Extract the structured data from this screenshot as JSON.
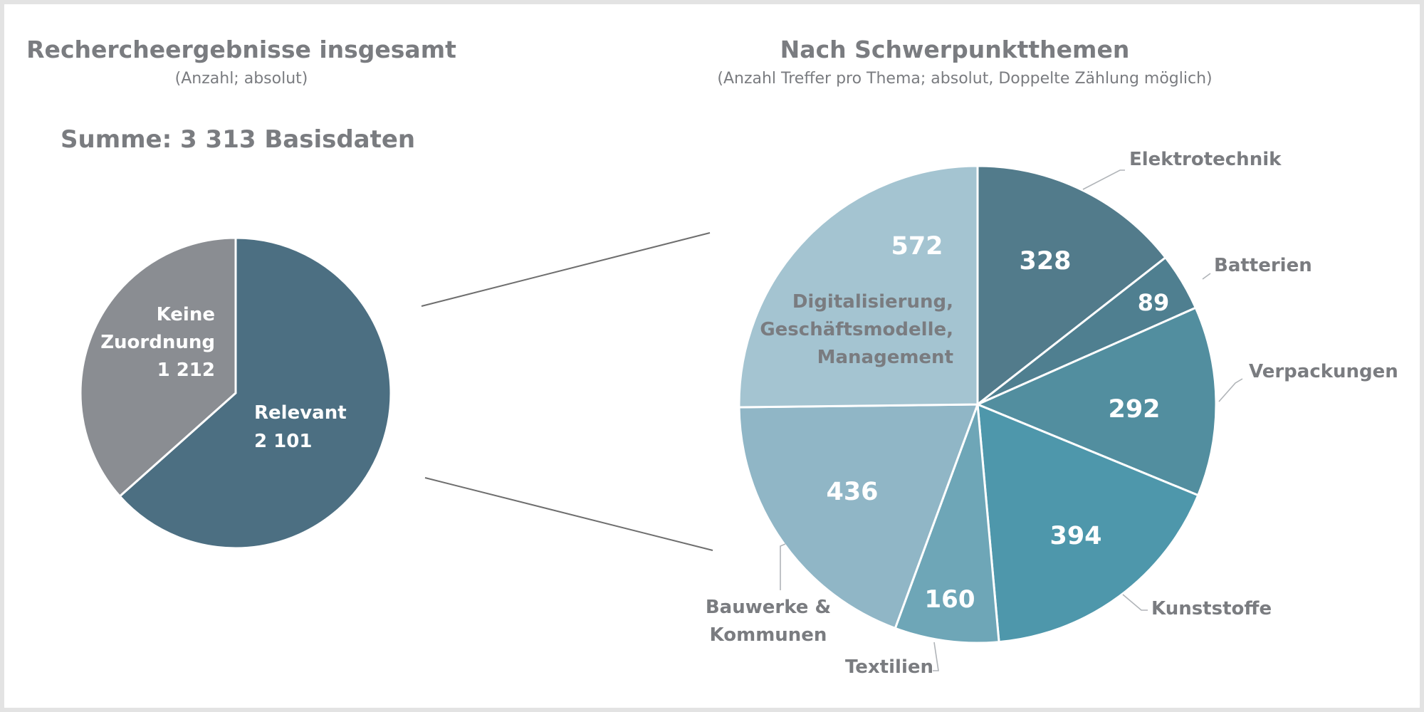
{
  "colors": {
    "relevant": "#4c6f82",
    "keine": "#8a8d92",
    "background": "#ffffff",
    "text_gray": "#7a7c80",
    "connector": "#6e6e6e",
    "elektrotechnik": "#527b8b",
    "batterien": "#4f7f90",
    "verpackungen": "#528e9f",
    "kunststoffe": "#4e97ab",
    "textilien": "#6ea6b7",
    "bauwerke": "#90b6c6",
    "digitalisierung": "#a4c4d1"
  },
  "chart_data": [
    {
      "type": "pie",
      "title": "Rechercheergebnisse insgesamt",
      "subtitle": "(Anzahl; absolut)",
      "annotation": "Summe: 3 313 Basisdaten",
      "slices": [
        {
          "key": "relevant",
          "label": "Relevant",
          "value": 2101,
          "display": "2 101"
        },
        {
          "key": "keine",
          "label": "Keine Zuordnung",
          "label_lines": [
            "Keine",
            "Zuordnung"
          ],
          "value": 1212,
          "display": "1 212"
        }
      ]
    },
    {
      "type": "pie",
      "title": "Nach Schwerpunktthemen",
      "subtitle": "(Anzahl Treffer pro Thema; absolut, Doppelte Zählung möglich)",
      "slices": [
        {
          "key": "elektrotechnik",
          "label": "Elektrotechnik",
          "value": 328,
          "display": "328"
        },
        {
          "key": "batterien",
          "label": "Batterien",
          "value": 89,
          "display": "89"
        },
        {
          "key": "verpackungen",
          "label": "Verpackungen",
          "value": 292,
          "display": "292"
        },
        {
          "key": "kunststoffe",
          "label": "Kunststoffe",
          "value": 394,
          "display": "394"
        },
        {
          "key": "textilien",
          "label": "Textilien",
          "value": 160,
          "display": "160"
        },
        {
          "key": "bauwerke",
          "label": "Bauwerke & Kommunen",
          "label_lines": [
            "Bauwerke &",
            "Kommunen"
          ],
          "value": 436,
          "display": "436"
        },
        {
          "key": "digitalisierung",
          "label": "Digitalisierung, Geschäftsmodelle, Management",
          "label_lines": [
            "Digitalisierung,",
            "Geschäftsmodelle,",
            "Management"
          ],
          "value": 572,
          "display": "572"
        }
      ]
    }
  ]
}
